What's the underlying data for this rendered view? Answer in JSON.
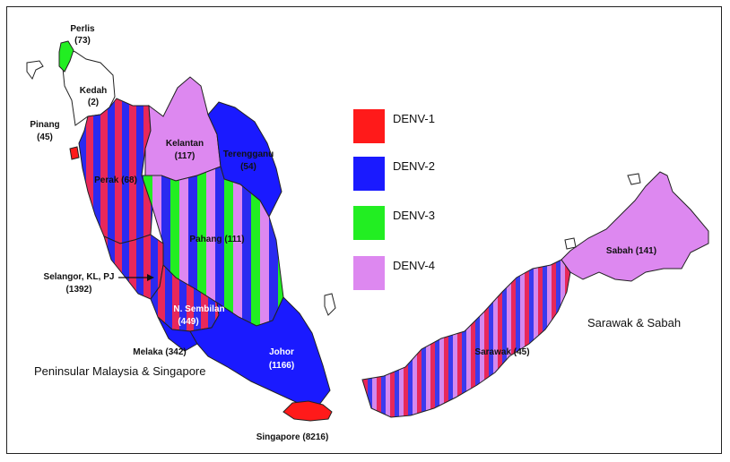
{
  "colors": {
    "denv1": "#ff1a1a",
    "denv2": "#1a1aff",
    "denv3": "#22ee22",
    "denv4": "#dd88f0",
    "outline": "#222222"
  },
  "legend": [
    {
      "label": "DENV-1",
      "color": "#ff1a1a"
    },
    {
      "label": "DENV-2",
      "color": "#1a1aff"
    },
    {
      "label": "DENV-3",
      "color": "#22ee22"
    },
    {
      "label": "DENV-4",
      "color": "#dd88f0"
    }
  ],
  "region_titles": {
    "peninsular": "Peninsular Malaysia & Singapore",
    "borneo": "Sarawak & Sabah"
  },
  "states": {
    "perlis": {
      "name": "Perlis",
      "count": "(73)",
      "serotypes": [
        "DENV-3"
      ]
    },
    "kedah": {
      "name": "Kedah",
      "count": "(2)",
      "serotypes": []
    },
    "pinang": {
      "name": "Pinang",
      "count": "(45)",
      "serotypes": [
        "DENV-1"
      ]
    },
    "perak": {
      "name": "Perak (68)",
      "serotypes": [
        "DENV-1",
        "DENV-2"
      ]
    },
    "kelantan": {
      "name": "Kelantan",
      "count": "(117)",
      "serotypes": [
        "DENV-4"
      ]
    },
    "terengganu": {
      "name": "Terengganu",
      "count": "(54)",
      "serotypes": [
        "DENV-2"
      ]
    },
    "pahang": {
      "name": "Pahang (111)",
      "serotypes": [
        "DENV-2",
        "DENV-3",
        "DENV-4"
      ]
    },
    "selangor": {
      "name": "Selangor, KL, PJ",
      "count": "(1392)",
      "serotypes": [
        "DENV-1",
        "DENV-2"
      ]
    },
    "nsembilan": {
      "name": "N. Sembilan",
      "count": "(449)",
      "serotypes": [
        "DENV-1",
        "DENV-2"
      ]
    },
    "melaka": {
      "name": "Melaka (342)",
      "serotypes": [
        "DENV-2"
      ]
    },
    "johor": {
      "name": "Johor",
      "count": "(1166)",
      "serotypes": [
        "DENV-2"
      ]
    },
    "singapore": {
      "name": "Singapore (8216)",
      "serotypes": [
        "DENV-1"
      ]
    },
    "sarawak": {
      "name": "Sarawak (45)",
      "serotypes": [
        "DENV-1",
        "DENV-2",
        "DENV-4"
      ]
    },
    "sabah": {
      "name": "Sabah (141)",
      "serotypes": [
        "DENV-4"
      ]
    }
  }
}
